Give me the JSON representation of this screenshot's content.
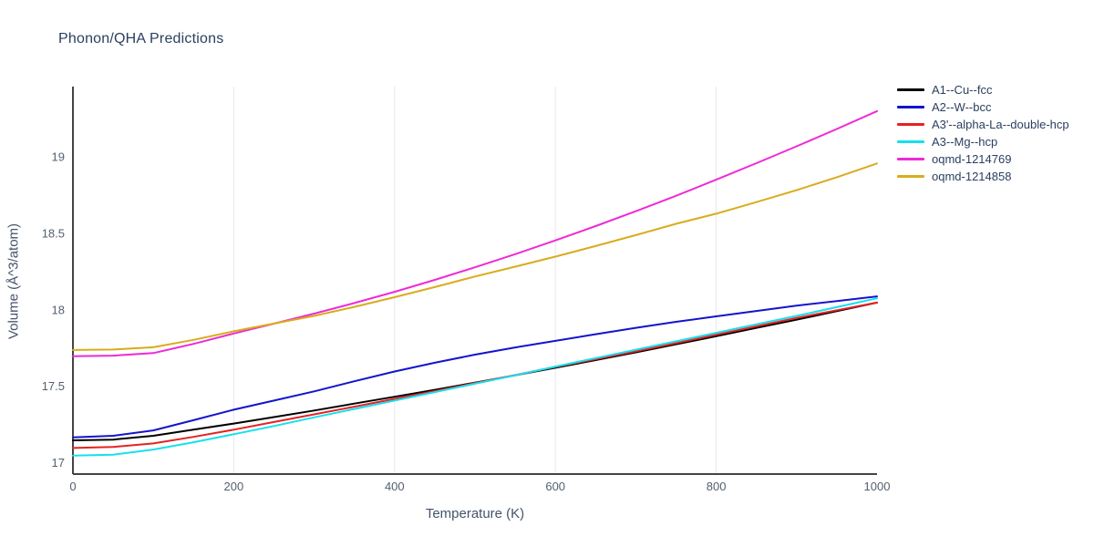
{
  "page": {
    "title": "Phonon/QHA Predictions"
  },
  "theme": {
    "background": "#ffffff",
    "title_color": "#2a3f5f",
    "axis_label_color": "#44546a",
    "tick_label_color": "#53606f",
    "axis_line_color": "#444444",
    "grid_color": "#e5e8ec",
    "legend_text_color": "#2a3f5f"
  },
  "chart_data": {
    "type": "line",
    "title": "Phonon/QHA Predictions",
    "xlabel": "Temperature (K)",
    "ylabel": "Volume (Å^3/atom)",
    "xlim": [
      0,
      1000
    ],
    "ylim": [
      16.93,
      19.46
    ],
    "xticks": [
      0,
      200,
      400,
      600,
      800,
      1000
    ],
    "yticks": [
      17,
      17.5,
      18,
      18.5,
      19
    ],
    "grid": {
      "vertical": true,
      "horizontal": false
    },
    "legend_position": "top-right-outside",
    "x": [
      0,
      50,
      100,
      150,
      200,
      250,
      300,
      350,
      400,
      450,
      500,
      550,
      600,
      650,
      700,
      750,
      800,
      850,
      900,
      950,
      1000
    ],
    "series": [
      {
        "name": "A1--Cu--fcc",
        "color": "#000000",
        "values": [
          17.15,
          17.155,
          17.18,
          17.22,
          17.26,
          17.302,
          17.345,
          17.39,
          17.435,
          17.48,
          17.527,
          17.575,
          17.624,
          17.674,
          17.725,
          17.777,
          17.83,
          17.884,
          17.938,
          17.994,
          18.05
        ]
      },
      {
        "name": "A2--W--bcc",
        "color": "#1414cc",
        "values": [
          17.17,
          17.18,
          17.215,
          17.282,
          17.35,
          17.41,
          17.47,
          17.536,
          17.6,
          17.657,
          17.71,
          17.757,
          17.8,
          17.843,
          17.885,
          17.924,
          17.96,
          17.995,
          18.03,
          18.06,
          18.09
        ]
      },
      {
        "name": "A3'--alpha-La--double-hcp",
        "color": "#e62222",
        "values": [
          17.1,
          17.107,
          17.13,
          17.173,
          17.22,
          17.27,
          17.32,
          17.37,
          17.421,
          17.472,
          17.524,
          17.576,
          17.63,
          17.68,
          17.731,
          17.785,
          17.84,
          17.895,
          17.95,
          18.0,
          18.05
        ]
      },
      {
        "name": "A3--Mg--hcp",
        "color": "#16e0ee",
        "values": [
          17.05,
          17.057,
          17.09,
          17.138,
          17.19,
          17.244,
          17.3,
          17.355,
          17.41,
          17.465,
          17.52,
          17.575,
          17.632,
          17.687,
          17.742,
          17.797,
          17.852,
          17.908,
          17.963,
          18.02,
          18.078
        ]
      },
      {
        "name": "oqmd-1214769",
        "color": "#ef2ad5",
        "values": [
          17.7,
          17.703,
          17.72,
          17.78,
          17.848,
          17.912,
          17.978,
          18.047,
          18.12,
          18.198,
          18.28,
          18.366,
          18.456,
          18.549,
          18.646,
          18.747,
          18.852,
          18.96,
          19.07,
          19.183,
          19.3
        ]
      },
      {
        "name": "oqmd-1214858",
        "color": "#d8ac1c",
        "values": [
          17.74,
          17.743,
          17.758,
          17.806,
          17.862,
          17.913,
          17.963,
          18.022,
          18.085,
          18.151,
          18.22,
          18.284,
          18.35,
          18.419,
          18.49,
          18.564,
          18.63,
          18.706,
          18.784,
          18.868,
          18.958
        ]
      }
    ]
  }
}
